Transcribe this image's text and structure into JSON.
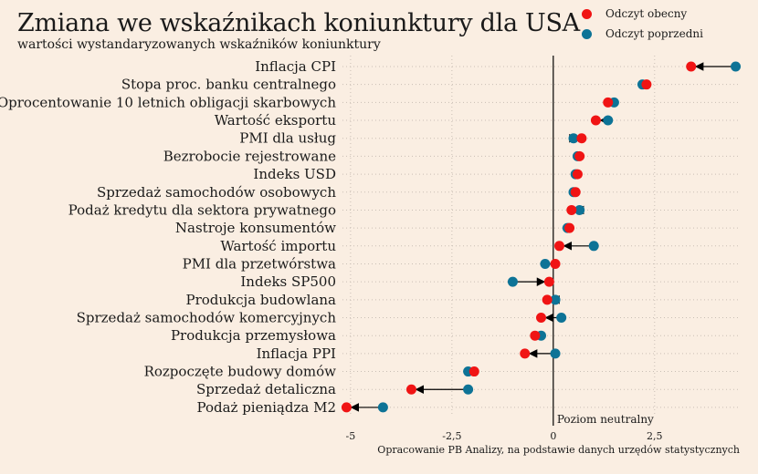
{
  "chart_data": {
    "type": "scatter",
    "title": "Zmiana we wskaźnikach koniunktury dla USA",
    "subtitle": "wartości wystandaryzowanych wskaźników koniunktury",
    "source": "Opracowanie PB Analizy, na podstawie danych urzędów statystycznych",
    "neutral_label": "Poziom neutralny",
    "xlim": [
      -5.2,
      4.6
    ],
    "x_ticks": [
      -5,
      -2.5,
      0,
      2.5
    ],
    "x_tick_labels": [
      "-5",
      "-2,5",
      "0",
      "2,5"
    ],
    "grid": true,
    "legend_position": "top-right",
    "series": [
      {
        "name": "Odczyt obecny",
        "color": "#f01414"
      },
      {
        "name": "Odczyt poprzedni",
        "color": "#0d7396"
      }
    ],
    "categories": [
      "Inflacja CPI",
      "Stopa proc. banku centralnego",
      "Oprocentowanie 10 letnich obligacji skarbowych",
      "Wartość eksportu",
      "PMI dla usług",
      "Bezrobocie rejestrowane",
      "Indeks USD",
      "Sprzedaż samochodów osobowych",
      "Podaż kredytu dla sektora prywatnego",
      "Nastroje konsumentów",
      "Wartość importu",
      "PMI dla przetwórstwa",
      "Indeks SP500",
      "Produkcja budowlana",
      "Sprzedaż samochodów komercyjnych",
      "Produkcja przemysłowa",
      "Inflacja PPI",
      "Rozpoczęte budowy domów",
      "Sprzedaż detaliczna",
      "Podaż pieniądza M2"
    ],
    "current": [
      3.4,
      2.3,
      1.35,
      1.05,
      0.7,
      0.65,
      0.6,
      0.55,
      0.45,
      0.4,
      0.15,
      0.05,
      -0.1,
      -0.15,
      -0.3,
      -0.45,
      -0.7,
      -1.95,
      -3.5,
      -5.1
    ],
    "previous": [
      4.5,
      2.2,
      1.5,
      1.35,
      0.5,
      0.6,
      0.55,
      0.5,
      0.65,
      0.35,
      1.0,
      -0.2,
      -1.0,
      0.05,
      0.2,
      -0.3,
      0.05,
      -2.1,
      -2.1,
      -4.2
    ]
  }
}
